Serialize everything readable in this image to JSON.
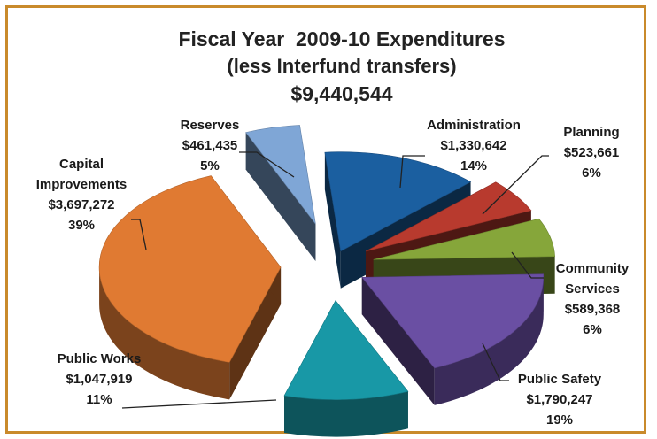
{
  "chart_data": {
    "type": "pie",
    "style": "3d-exploded",
    "title": "Fiscal Year  2009-10 Expenditures",
    "subtitle": "(less Interfund transfers)",
    "total": "$9,440,544",
    "slices": [
      {
        "name": "Administration",
        "value": 1330642,
        "value_label": "$1,330,642",
        "percent": 14,
        "percent_label": "14%",
        "color": "#1b5fa0"
      },
      {
        "name": "Planning",
        "value": 523661,
        "value_label": "$523,661",
        "percent": 6,
        "percent_label": "6%",
        "color": "#b83a2e"
      },
      {
        "name": "Community Services",
        "name_lines": [
          "Community",
          "Services"
        ],
        "value": 589368,
        "value_label": "$589,368",
        "percent": 6,
        "percent_label": "6%",
        "color": "#86a63a"
      },
      {
        "name": "Public Safety",
        "value": 1790247,
        "value_label": "$1,790,247",
        "percent": 19,
        "percent_label": "19%",
        "color": "#6a4fa3"
      },
      {
        "name": "Public Works",
        "value": 1047919,
        "value_label": "$1,047,919",
        "percent": 11,
        "percent_label": "11%",
        "color": "#1898a6"
      },
      {
        "name": "Capital Improvements",
        "name_lines": [
          "Capital",
          "Improvements"
        ],
        "value": 3697272,
        "value_label": "$3,697,272",
        "percent": 39,
        "percent_label": "39%",
        "color": "#e07a32"
      },
      {
        "name": "Reserves",
        "value": 461435,
        "value_label": "$461,435",
        "percent": 5,
        "percent_label": "5%",
        "color": "#7fa6d6"
      }
    ],
    "legend": "none"
  }
}
